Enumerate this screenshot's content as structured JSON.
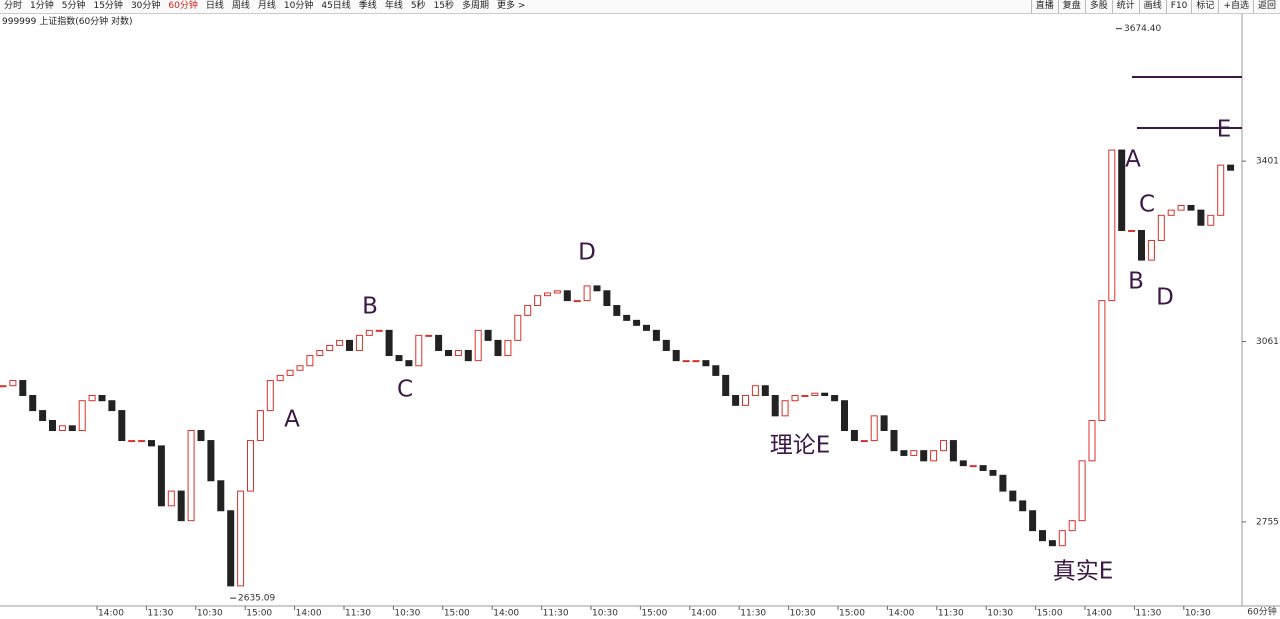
{
  "toolbar": {
    "left": [
      "分时",
      "1分钟",
      "5分钟",
      "15分钟",
      "30分钟",
      "60分钟",
      "日线",
      "周线",
      "月线",
      "10分钟",
      "45日线",
      "季线",
      "年线",
      "5秒",
      "15秒",
      "多周期",
      "更多 >"
    ],
    "right": [
      "直播",
      "复盘",
      "多股",
      "统计",
      "画线",
      "F10",
      "标记",
      "+自选",
      "返回"
    ]
  },
  "chart_data": {
    "type": "candlestick",
    "title": "999999 上证指数(60分钟 对数)",
    "period_label": "60分钟",
    "log_scale": true,
    "ylim": [
      2623,
      3706
    ],
    "yticks": [
      2755,
      3061,
      3401
    ],
    "up_color": "#d9322c",
    "down_color": "#222222",
    "high": {
      "value": 3674.4,
      "label": "3674.40"
    },
    "low": {
      "value": 2635.09,
      "label": "2635.09"
    },
    "x_tick_labels": [
      "14:00",
      "11:30",
      "10:30",
      "15:00",
      "14:00",
      "11:30",
      "10:30",
      "15:00",
      "14:00",
      "11:30",
      "10:30",
      "15:00",
      "14:00",
      "11:30",
      "10:30",
      "15:00",
      "14:00",
      "11:30",
      "10:30",
      "15:00",
      "14:00",
      "11:30",
      "10:30"
    ],
    "annotations": [
      "A",
      "B",
      "C",
      "D",
      "理论E",
      "真实E",
      "A",
      "B",
      "C",
      "D",
      "E"
    ],
    "values": [
      2983,
      2992,
      2966,
      2940,
      2923,
      2906,
      2914,
      2906,
      2957,
      2966,
      2957,
      2940,
      2889,
      2889,
      2889,
      2880,
      2781,
      2805,
      2757,
      2906,
      2889,
      2822,
      2773,
      2654,
      2805,
      2889,
      2940,
      2992,
      3001,
      3010,
      3018,
      3036,
      3045,
      3054,
      3063,
      3045,
      3072,
      3081,
      3081,
      3036,
      3027,
      3018,
      3072,
      3072,
      3045,
      3036,
      3045,
      3027,
      3081,
      3063,
      3036,
      3063,
      3108,
      3126,
      3144,
      3149,
      3153,
      3135,
      3135,
      3162,
      3153,
      3126,
      3108,
      3099,
      3090,
      3081,
      3063,
      3045,
      3027,
      3027,
      3027,
      3018,
      3001,
      2966,
      2949,
      2966,
      2983,
      2966,
      2931,
      2957,
      2966,
      2966,
      2970,
      2966,
      2957,
      2906,
      2889,
      2889,
      2931,
      2906,
      2872,
      2864,
      2872,
      2855,
      2872,
      2889,
      2855,
      2847,
      2847,
      2839,
      2831,
      2805,
      2789,
      2773,
      2741,
      2725,
      2717,
      2741,
      2757,
      2855,
      2923,
      3135,
      3423,
      3266,
      3266,
      3210,
      3247,
      3295,
      3305,
      3314,
      3305,
      3276,
      3295,
      3393,
      3383
    ]
  }
}
